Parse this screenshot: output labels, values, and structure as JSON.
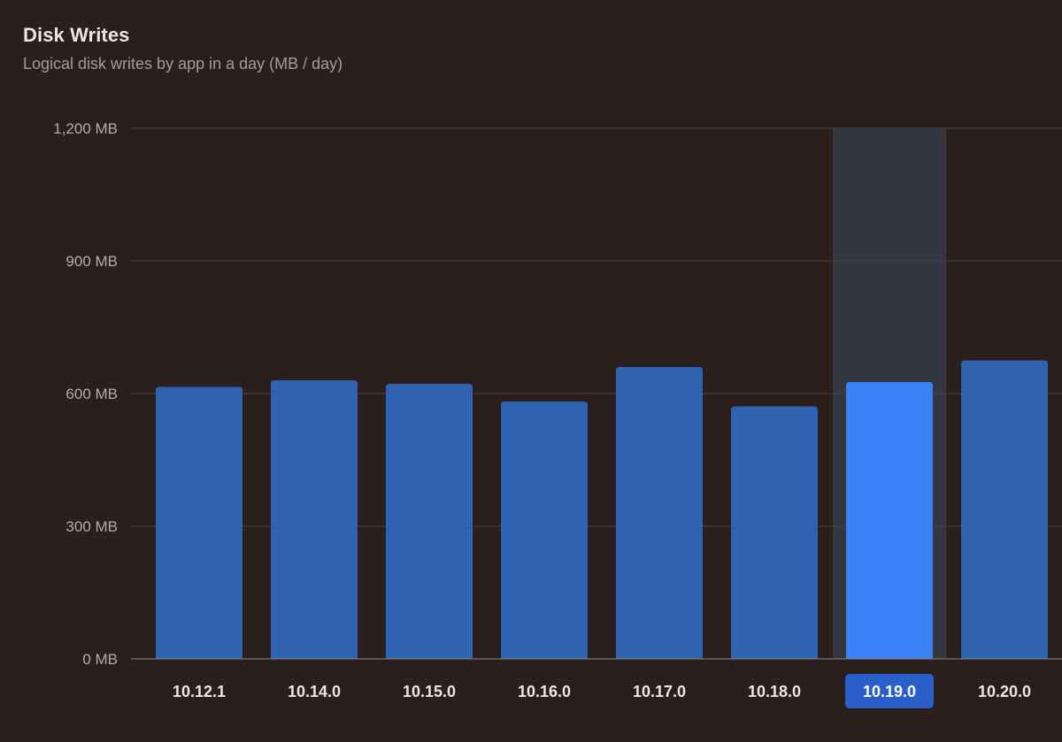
{
  "header": {
    "title": "Disk Writes",
    "subtitle": "Logical disk writes by app in a day (MB / day)"
  },
  "selected_category": "10.19.0",
  "colors": {
    "background": "#2a1f1d",
    "bar": "#2f62b0",
    "bar_selected": "#3b82f6",
    "selection_band": "#343642",
    "selected_label_bg": "#2a5fc9",
    "gridline": "#4a4240",
    "baseline": "#8e8784"
  },
  "chart_data": {
    "type": "bar",
    "categories": [
      "10.12.1",
      "10.14.0",
      "10.15.0",
      "10.16.0",
      "10.17.0",
      "10.18.0",
      "10.19.0",
      "10.20.0"
    ],
    "values": [
      615,
      630,
      622,
      582,
      660,
      571,
      626,
      675
    ],
    "ylim": [
      0,
      1200
    ],
    "y_ticks": [
      0,
      300,
      600,
      900,
      1200
    ],
    "y_tick_labels": [
      "0 MB",
      "300 MB",
      "600 MB",
      "900 MB",
      "1,200 MB"
    ],
    "grid": true
  }
}
